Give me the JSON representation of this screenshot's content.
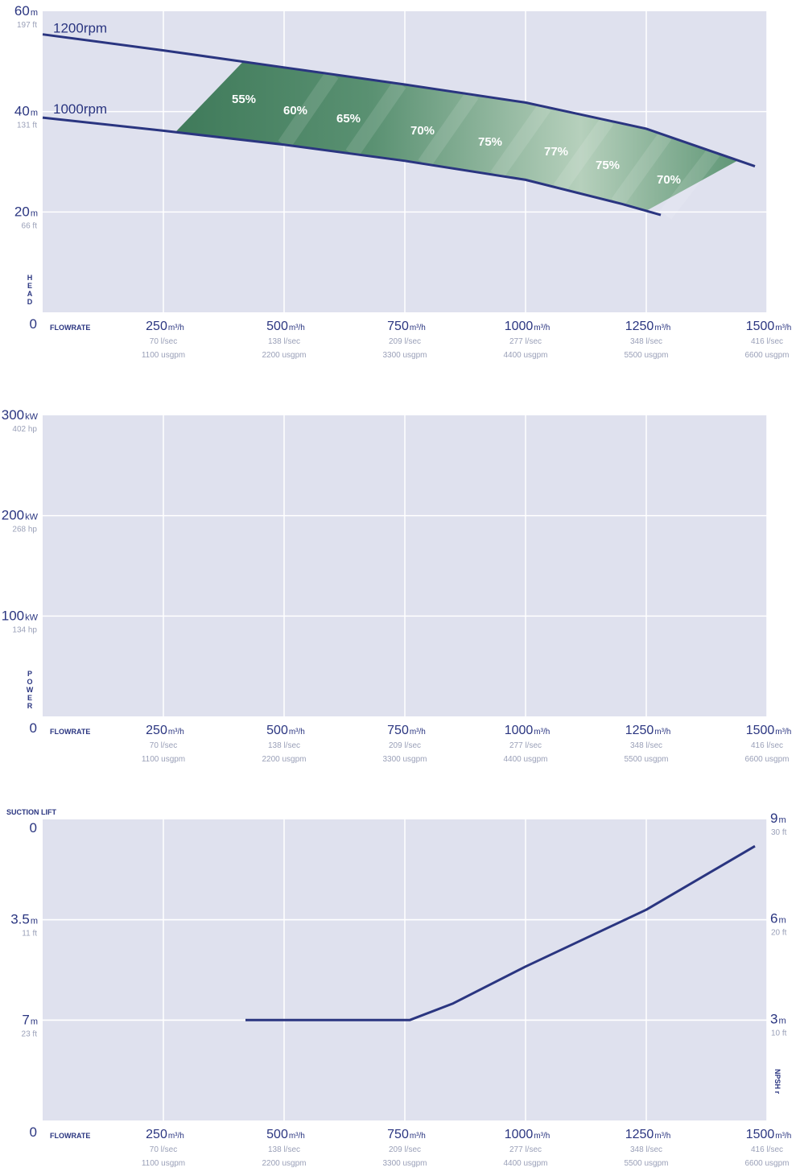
{
  "chart_data": [
    {
      "type": "line",
      "title": "",
      "ylabel": "HEAD",
      "xlabel": "FLOWRATE",
      "zero_label": "0",
      "ylim": [
        0,
        60
      ],
      "xlim": [
        0,
        1500
      ],
      "grid": true,
      "y_ticks": [
        {
          "value": 60,
          "main": "60",
          "unit": "m",
          "sub": "197 ft"
        },
        {
          "value": 40,
          "main": "40",
          "unit": "m",
          "sub": "131 ft"
        },
        {
          "value": 20,
          "main": "20",
          "unit": "m",
          "sub": "66 ft"
        }
      ],
      "x_ticks": [
        {
          "value": 250,
          "main": "250",
          "unit": "m³/h",
          "sub1": "70 l/sec",
          "sub2": "1100 usgpm"
        },
        {
          "value": 500,
          "main": "500",
          "unit": "m³/h",
          "sub1": "138 l/sec",
          "sub2": "2200 usgpm"
        },
        {
          "value": 750,
          "main": "750",
          "unit": "m³/h",
          "sub1": "209 l/sec",
          "sub2": "3300 usgpm"
        },
        {
          "value": 1000,
          "main": "1000",
          "unit": "m³/h",
          "sub1": "277 l/sec",
          "sub2": "4400 usgpm"
        },
        {
          "value": 1250,
          "main": "1250",
          "unit": "m³/h",
          "sub1": "348 l/sec",
          "sub2": "5500 usgpm"
        },
        {
          "value": 1500,
          "main": "1500",
          "unit": "m³/h",
          "sub1": "416 l/sec",
          "sub2": "6600 usgpm"
        }
      ],
      "series": [
        {
          "name": "1200rpm",
          "x": [
            0,
            250,
            500,
            750,
            1000,
            1250,
            1475
          ],
          "y": [
            55.4,
            52.2,
            48.8,
            45.4,
            41.8,
            36.6,
            29.1
          ]
        },
        {
          "name": "1000rpm",
          "x": [
            0,
            250,
            500,
            750,
            1000,
            1200,
            1280
          ],
          "y": [
            38.8,
            36.2,
            33.4,
            30.2,
            26.4,
            21.6,
            19.4
          ]
        }
      ],
      "efficiency_labels": [
        "55%",
        "60%",
        "65%",
        "70%",
        "75%",
        "77%",
        "75%",
        "70%"
      ]
    },
    {
      "type": "line",
      "title": "",
      "ylabel": "POWER",
      "xlabel": "FLOWRATE",
      "zero_label": "0",
      "ylim": [
        0,
        300
      ],
      "xlim": [
        0,
        1500
      ],
      "grid": true,
      "y_ticks": [
        {
          "value": 300,
          "main": "300",
          "unit": "kW",
          "sub": "402 hp"
        },
        {
          "value": 200,
          "main": "200",
          "unit": "kW",
          "sub": "268 hp"
        },
        {
          "value": 100,
          "main": "100",
          "unit": "kW",
          "sub": "134 hp"
        }
      ],
      "x_ticks": [
        {
          "value": 250,
          "main": "250",
          "unit": "m³/h",
          "sub1": "70 l/sec",
          "sub2": "1100 usgpm"
        },
        {
          "value": 500,
          "main": "500",
          "unit": "m³/h",
          "sub1": "138 l/sec",
          "sub2": "2200 usgpm"
        },
        {
          "value": 750,
          "main": "750",
          "unit": "m³/h",
          "sub1": "209 l/sec",
          "sub2": "3300 usgpm"
        },
        {
          "value": 1000,
          "main": "1000",
          "unit": "m³/h",
          "sub1": "277 l/sec",
          "sub2": "4400 usgpm"
        },
        {
          "value": 1250,
          "main": "1250",
          "unit": "m³/h",
          "sub1": "348 l/sec",
          "sub2": "5500 usgpm"
        },
        {
          "value": 1500,
          "main": "1500",
          "unit": "m³/h",
          "sub1": "416 l/sec",
          "sub2": "6600 usgpm"
        }
      ],
      "series": []
    },
    {
      "type": "line",
      "title": "",
      "ylabel": "SUCTION LIFT",
      "y2label": "NPSH r",
      "xlabel": "FLOWRATE",
      "zero_label": "0",
      "top_label": "0",
      "ylim": [
        10.5,
        0
      ],
      "y2lim": [
        0,
        9
      ],
      "xlim": [
        0,
        1500
      ],
      "grid": true,
      "y_ticks": [
        {
          "value": 3.5,
          "main": "3.5",
          "unit": "m",
          "sub": "11 ft"
        },
        {
          "value": 7,
          "main": "7",
          "unit": "m",
          "sub": "23 ft"
        }
      ],
      "y2_ticks": [
        {
          "value": 9,
          "main": "9",
          "unit": "m",
          "sub": "30 ft"
        },
        {
          "value": 6,
          "main": "6",
          "unit": "m",
          "sub": "20 ft"
        },
        {
          "value": 3,
          "main": "3",
          "unit": "m",
          "sub": "10 ft"
        }
      ],
      "x_ticks": [
        {
          "value": 250,
          "main": "250",
          "unit": "m³/h",
          "sub1": "70 l/sec",
          "sub2": "1100 usgpm"
        },
        {
          "value": 500,
          "main": "500",
          "unit": "m³/h",
          "sub1": "138 l/sec",
          "sub2": "2200 usgpm"
        },
        {
          "value": 750,
          "main": "750",
          "unit": "m³/h",
          "sub1": "209 l/sec",
          "sub2": "3300 usgpm"
        },
        {
          "value": 1000,
          "main": "1000",
          "unit": "m³/h",
          "sub1": "277 l/sec",
          "sub2": "4400 usgpm"
        },
        {
          "value": 1250,
          "main": "1250",
          "unit": "m³/h",
          "sub1": "348 l/sec",
          "sub2": "5500 usgpm"
        },
        {
          "value": 1500,
          "main": "1500",
          "unit": "m³/h",
          "sub1": "416 l/sec",
          "sub2": "6600 usgpm"
        }
      ],
      "series": [
        {
          "x": [
            420,
            760,
            850,
            1000,
            1250,
            1475
          ],
          "y": [
            3,
            3,
            3.5,
            4.6,
            6.3,
            8.2
          ]
        }
      ]
    }
  ],
  "colors": {
    "panel": "#dfe1ee",
    "grid": "#ffffff",
    "line": "#2a3580",
    "band_dark": "#3f7a5a",
    "band_light": "#b6d0bc"
  }
}
